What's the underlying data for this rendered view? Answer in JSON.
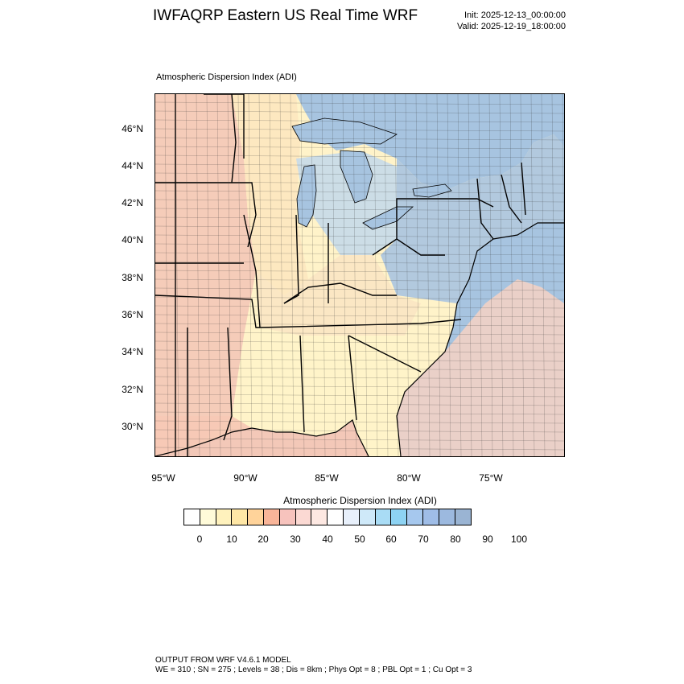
{
  "header": {
    "title": "IWFAQRP Eastern US Real Time WRF",
    "init": "Init: 2025-12-13_00:00:00",
    "valid": "Valid: 2025-12-19_18:00:00"
  },
  "plot": {
    "title": "Atmospheric Dispersion Index   (ADI)"
  },
  "axes": {
    "lat_ticks": [
      "46°N",
      "44°N",
      "42°N",
      "40°N",
      "38°N",
      "36°N",
      "34°N",
      "32°N",
      "30°N"
    ],
    "lon_ticks": [
      "95°W",
      "90°W",
      "85°W",
      "80°W",
      "75°W"
    ]
  },
  "legend": {
    "title": "Atmospheric Dispersion Index  (ADI)",
    "labels": [
      "0",
      "10",
      "20",
      "30",
      "40",
      "50",
      "60",
      "70",
      "80",
      "90",
      "100"
    ],
    "colors": [
      "#ffffff",
      "#fffbd9",
      "#fff2bd",
      "#ffe7a6",
      "#ffd39a",
      "#f9b599",
      "#f7c3bd",
      "#fbd9d3",
      "#fde8e2",
      "#ffffff",
      "#e8f0fb",
      "#cfe9f9",
      "#a9dcf5",
      "#8ed3f3",
      "#a6c8ee",
      "#9fbde7",
      "#9cb9df",
      "#9ab4d3"
    ]
  },
  "map": {
    "water_color": "#a7c4e0",
    "region_colors": {
      "west_plains": "#f4c9b8",
      "upper_midwest": "#fde7c0",
      "great_lakes_land": "#c9dbe8",
      "northeast": "#aec6df",
      "ohio_valley": "#fbe6c4",
      "southeast": "#fff3c9",
      "gulf_coast": "#f7c8b5",
      "atlantic_plume": "#fbd3c2"
    }
  },
  "footer": {
    "line1": "OUTPUT FROM WRF V4.6.1 MODEL",
    "line2": "WE = 310 ; SN = 275 ; Levels = 38 ; Dis = 8km ; Phys Opt = 8 ; PBL Opt = 1 ; Cu Opt = 3"
  }
}
